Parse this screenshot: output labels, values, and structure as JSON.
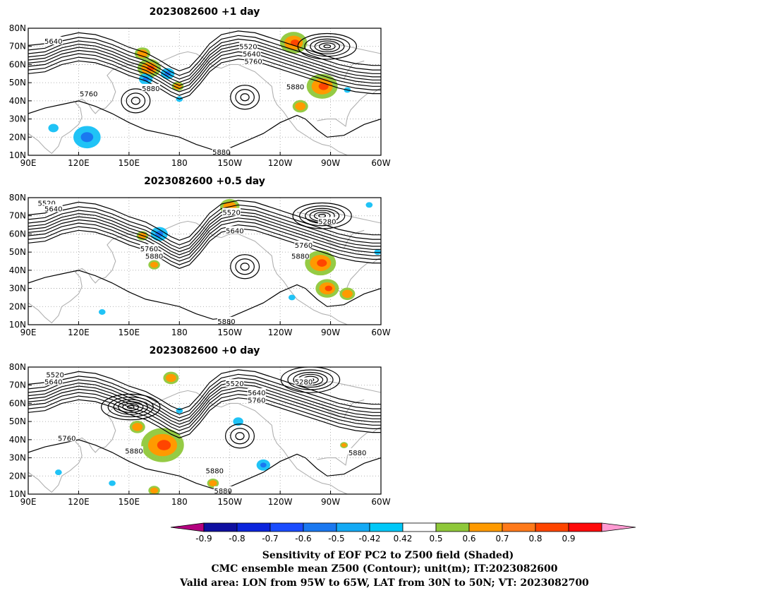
{
  "panels": [
    {
      "title": "2023082600  +1 day",
      "contour_labels": [
        {
          "text": "5640",
          "lon": 105,
          "lat": 73
        },
        {
          "text": "5520",
          "lon": 221,
          "lat": 70
        },
        {
          "text": "5640",
          "lon": 223,
          "lat": 66
        },
        {
          "text": "5760",
          "lon": 224,
          "lat": 62
        },
        {
          "text": "5760",
          "lon": 126,
          "lat": 44
        },
        {
          "text": "5880",
          "lon": 163,
          "lat": 47
        },
        {
          "text": "5880",
          "lon": 249,
          "lat": 48
        },
        {
          "text": "5880",
          "lon": 205,
          "lat": 12
        }
      ],
      "highs": [
        {
          "lon": 219,
          "lat": 42
        },
        {
          "lon": 154,
          "lat": 40
        }
      ],
      "lows": [
        {
          "lon": 268,
          "lat": 70
        }
      ],
      "warm": [
        {
          "lon": 162,
          "lat": 58,
          "r": 6
        },
        {
          "lon": 248,
          "lat": 72,
          "r": 7
        },
        {
          "lon": 265,
          "lat": 48,
          "r": 8
        },
        {
          "lon": 252,
          "lat": 37,
          "r": 4
        },
        {
          "lon": 158,
          "lat": 66,
          "r": 4
        },
        {
          "lon": 179,
          "lat": 48,
          "r": 3
        }
      ],
      "cool": [
        {
          "lon": 125,
          "lat": 20,
          "r": 8
        },
        {
          "lon": 105,
          "lat": 25,
          "r": 3
        },
        {
          "lon": 160,
          "lat": 52,
          "r": 4
        },
        {
          "lon": 173,
          "lat": 55,
          "r": 4
        },
        {
          "lon": 180,
          "lat": 41,
          "r": 2
        },
        {
          "lon": 280,
          "lat": 46,
          "r": 2
        }
      ]
    },
    {
      "title": "2023082600  +0.5 day",
      "contour_labels": [
        {
          "text": "5520",
          "lon": 101,
          "lat": 77
        },
        {
          "text": "5640",
          "lon": 105,
          "lat": 74
        },
        {
          "text": "5520",
          "lon": 211,
          "lat": 72
        },
        {
          "text": "5640",
          "lon": 213,
          "lat": 62
        },
        {
          "text": "5280",
          "lon": 268,
          "lat": 67
        },
        {
          "text": "5760",
          "lon": 162,
          "lat": 52
        },
        {
          "text": "5880",
          "lon": 165,
          "lat": 48
        },
        {
          "text": "5760",
          "lon": 254,
          "lat": 54
        },
        {
          "text": "5880",
          "lon": 252,
          "lat": 48
        },
        {
          "text": "5880",
          "lon": 208,
          "lat": 12
        }
      ],
      "highs": [
        {
          "lon": 219,
          "lat": 42
        }
      ],
      "lows": [
        {
          "lon": 265,
          "lat": 70
        }
      ],
      "warm": [
        {
          "lon": 264,
          "lat": 44,
          "r": 8
        },
        {
          "lon": 268,
          "lat": 30,
          "r": 6
        },
        {
          "lon": 280,
          "lat": 27,
          "r": 4
        },
        {
          "lon": 210,
          "lat": 75,
          "r": 5
        },
        {
          "lon": 165,
          "lat": 43,
          "r": 3
        },
        {
          "lon": 158,
          "lat": 59,
          "r": 3
        }
      ],
      "cool": [
        {
          "lon": 168,
          "lat": 60,
          "r": 5
        },
        {
          "lon": 134,
          "lat": 17,
          "r": 2
        },
        {
          "lon": 247,
          "lat": 25,
          "r": 2
        },
        {
          "lon": 298,
          "lat": 50,
          "r": 2
        },
        {
          "lon": 293,
          "lat": 76,
          "r": 2
        }
      ]
    },
    {
      "title": "2023082600  +0 day",
      "contour_labels": [
        {
          "text": "5520",
          "lon": 106,
          "lat": 76
        },
        {
          "text": "5640",
          "lon": 105,
          "lat": 72
        },
        {
          "text": "5520",
          "lon": 213,
          "lat": 71
        },
        {
          "text": "5280",
          "lon": 254,
          "lat": 72
        },
        {
          "text": "5640",
          "lon": 226,
          "lat": 66
        },
        {
          "text": "5760",
          "lon": 226,
          "lat": 62
        },
        {
          "text": "5760",
          "lon": 113,
          "lat": 41
        },
        {
          "text": "5880",
          "lon": 153,
          "lat": 34
        },
        {
          "text": "5880",
          "lon": 201,
          "lat": 23
        },
        {
          "text": "5880",
          "lon": 206,
          "lat": 12
        },
        {
          "text": "5880",
          "lon": 286,
          "lat": 33
        }
      ],
      "highs": [
        {
          "lon": 216,
          "lat": 42
        }
      ],
      "lows": [
        {
          "lon": 258,
          "lat": 73
        },
        {
          "lon": 151,
          "lat": 58
        }
      ],
      "warm": [
        {
          "lon": 170,
          "lat": 37,
          "r": 11
        },
        {
          "lon": 155,
          "lat": 47,
          "r": 4
        },
        {
          "lon": 200,
          "lat": 16,
          "r": 3
        },
        {
          "lon": 165,
          "lat": 12,
          "r": 3
        },
        {
          "lon": 175,
          "lat": 74,
          "r": 4
        },
        {
          "lon": 278,
          "lat": 37,
          "r": 2
        }
      ],
      "cool": [
        {
          "lon": 230,
          "lat": 26,
          "r": 4
        },
        {
          "lon": 215,
          "lat": 50,
          "r": 3
        },
        {
          "lon": 140,
          "lat": 16,
          "r": 2
        },
        {
          "lon": 108,
          "lat": 22,
          "r": 2
        },
        {
          "lon": 180,
          "lat": 56,
          "r": 2
        }
      ]
    }
  ],
  "map_axes": {
    "x_ticks": [
      "90E",
      "120E",
      "150E",
      "180",
      "150W",
      "120W",
      "90W",
      "60W"
    ],
    "y_ticks": [
      "80N",
      "70N",
      "60N",
      "50N",
      "40N",
      "30N",
      "20N",
      "10N"
    ],
    "lon_range": [
      90,
      300
    ],
    "lat_range": [
      10,
      80
    ],
    "contour_interval_m": 60
  },
  "colorbar": {
    "tick_labels": [
      "-0.9",
      "-0.8",
      "-0.7",
      "-0.6",
      "-0.5",
      "-0.42",
      "0.42",
      "0.5",
      "0.6",
      "0.7",
      "0.8",
      "0.9"
    ],
    "colors": [
      "#b3007f",
      "#0f0fa0",
      "#0b24dc",
      "#1a4cff",
      "#1a78f0",
      "#14aaf5",
      "#00c8f8",
      "#ffffff",
      "#8fc83a",
      "#ff9a00",
      "#ff7a1a",
      "#ff4500",
      "#ff0a0a",
      "#ff9ad2"
    ]
  },
  "caption": {
    "line1": "Sensitivity of EOF PC2 to Z500 field (Shaded)",
    "line2": "CMC ensemble mean Z500 (Contour); unit(m); IT:2023082600",
    "line3": "Valid area: LON from 95W to 65W, LAT from 30N to 50N; VT: 2023082700"
  }
}
